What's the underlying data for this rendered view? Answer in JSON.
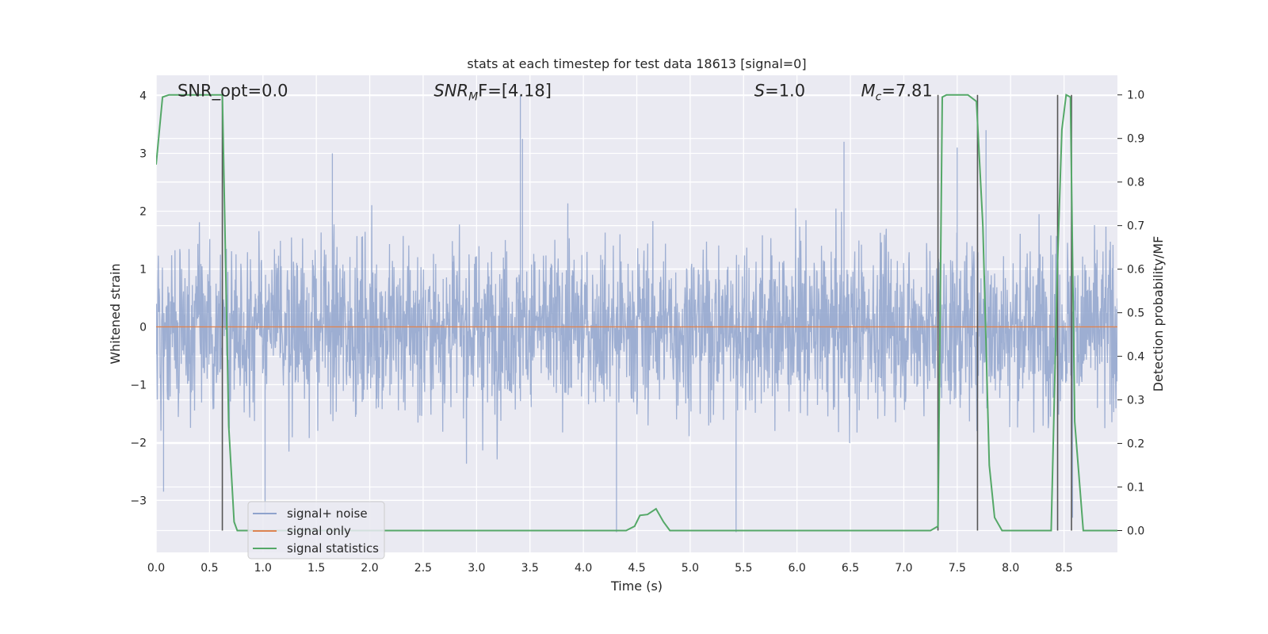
{
  "chart_data": {
    "type": "line",
    "title": "stats at each timestep for test data 18613 [signal=0]",
    "xlabel": "Time (s)",
    "ylabel": "Whitened strain",
    "ylabel_right": "Detection probability/MF",
    "xlim": [
      0.0,
      9.0
    ],
    "ylim": [
      -3.9,
      4.35
    ],
    "ylim_right": [
      -0.05,
      1.045
    ],
    "x_ticks": [
      "0.0",
      "0.5",
      "1.0",
      "1.5",
      "2.0",
      "2.5",
      "3.0",
      "3.5",
      "4.0",
      "4.5",
      "5.0",
      "5.5",
      "6.0",
      "6.5",
      "7.0",
      "7.5",
      "8.0",
      "8.5"
    ],
    "y_ticks": [
      "−3",
      "−2",
      "−1",
      "0",
      "1",
      "2",
      "3",
      "4"
    ],
    "y_ticks_right": [
      "0.0",
      "0.1",
      "0.2",
      "0.3",
      "0.4",
      "0.5",
      "0.6",
      "0.7",
      "0.8",
      "0.9",
      "1.0"
    ],
    "annotations": [
      {
        "text": "SNR_opt=0.0",
        "x": 0.2,
        "y": 4.08
      },
      {
        "text": "SNR",
        "sub": "M",
        "rest": "F=[4.18]",
        "italic": true,
        "x": 2.6,
        "y": 4.08
      },
      {
        "text": "S",
        "rest": "=1.0",
        "italic": true,
        "x": 5.6,
        "y": 4.08
      },
      {
        "text": "M",
        "sub": "c",
        "rest": "=7.81",
        "italic": true,
        "x": 6.6,
        "y": 4.08
      }
    ],
    "legend": {
      "placement": "lower-left",
      "entries": [
        {
          "label": "signal+ noise",
          "color": "#8fa3cd"
        },
        {
          "label": "signal only",
          "color": "#dd8452"
        },
        {
          "label": "signal statistics",
          "color": "#55a868"
        }
      ]
    },
    "vertical_lines_x": [
      0.62,
      7.32,
      7.69,
      8.44,
      8.57
    ],
    "series": [
      {
        "name": "signal+ noise",
        "axis": "left",
        "color": "#8fa3cd",
        "kind": "noise",
        "x_range": [
          0.0,
          9.0
        ],
        "typical_amplitude": 1.3,
        "peak_events": [
          {
            "x": 3.41,
            "y": 4.0
          },
          {
            "x": 3.43,
            "y": 3.25
          },
          {
            "x": 1.65,
            "y": 3.0
          },
          {
            "x": 7.5,
            "y": 3.1
          },
          {
            "x": 7.77,
            "y": 3.4
          },
          {
            "x": 6.44,
            "y": 3.2
          },
          {
            "x": 4.31,
            "y": -3.55
          },
          {
            "x": 5.43,
            "y": -3.55
          },
          {
            "x": 1.02,
            "y": -3.25
          },
          {
            "x": 8.58,
            "y": -3.3
          },
          {
            "x": 0.07,
            "y": -2.85
          }
        ]
      },
      {
        "name": "signal only",
        "axis": "left",
        "color": "#dd8452",
        "x": [
          0.0,
          9.0
        ],
        "y": [
          0.0,
          0.0
        ]
      },
      {
        "name": "signal statistics",
        "axis": "right",
        "color": "#55a868",
        "x": [
          0.0,
          0.06,
          0.12,
          0.3,
          0.5,
          0.62,
          0.68,
          0.73,
          0.76,
          0.8,
          1.5,
          2.5,
          3.5,
          4.0,
          4.4,
          4.48,
          4.53,
          4.6,
          4.68,
          4.75,
          4.81,
          5.0,
          6.0,
          7.0,
          7.25,
          7.32,
          7.36,
          7.4,
          7.5,
          7.6,
          7.68,
          7.74,
          7.8,
          7.85,
          7.92,
          7.97,
          8.1,
          8.3,
          8.38,
          8.44,
          8.48,
          8.52,
          8.56,
          8.6,
          8.68,
          8.75,
          9.0
        ],
        "y": [
          0.84,
          0.995,
          1.0,
          1.0,
          1.0,
          1.0,
          0.24,
          0.02,
          0.0,
          0.0,
          0.0,
          0.0,
          0.0,
          0.0,
          0.0,
          0.01,
          0.035,
          0.037,
          0.05,
          0.02,
          0.0,
          0.0,
          0.0,
          0.0,
          0.0,
          0.01,
          0.995,
          1.0,
          1.0,
          1.0,
          0.985,
          0.7,
          0.15,
          0.03,
          0.0,
          0.0,
          0.0,
          0.0,
          0.0,
          0.62,
          0.92,
          1.0,
          0.995,
          0.25,
          0.0,
          0.0,
          0.0
        ]
      }
    ]
  }
}
